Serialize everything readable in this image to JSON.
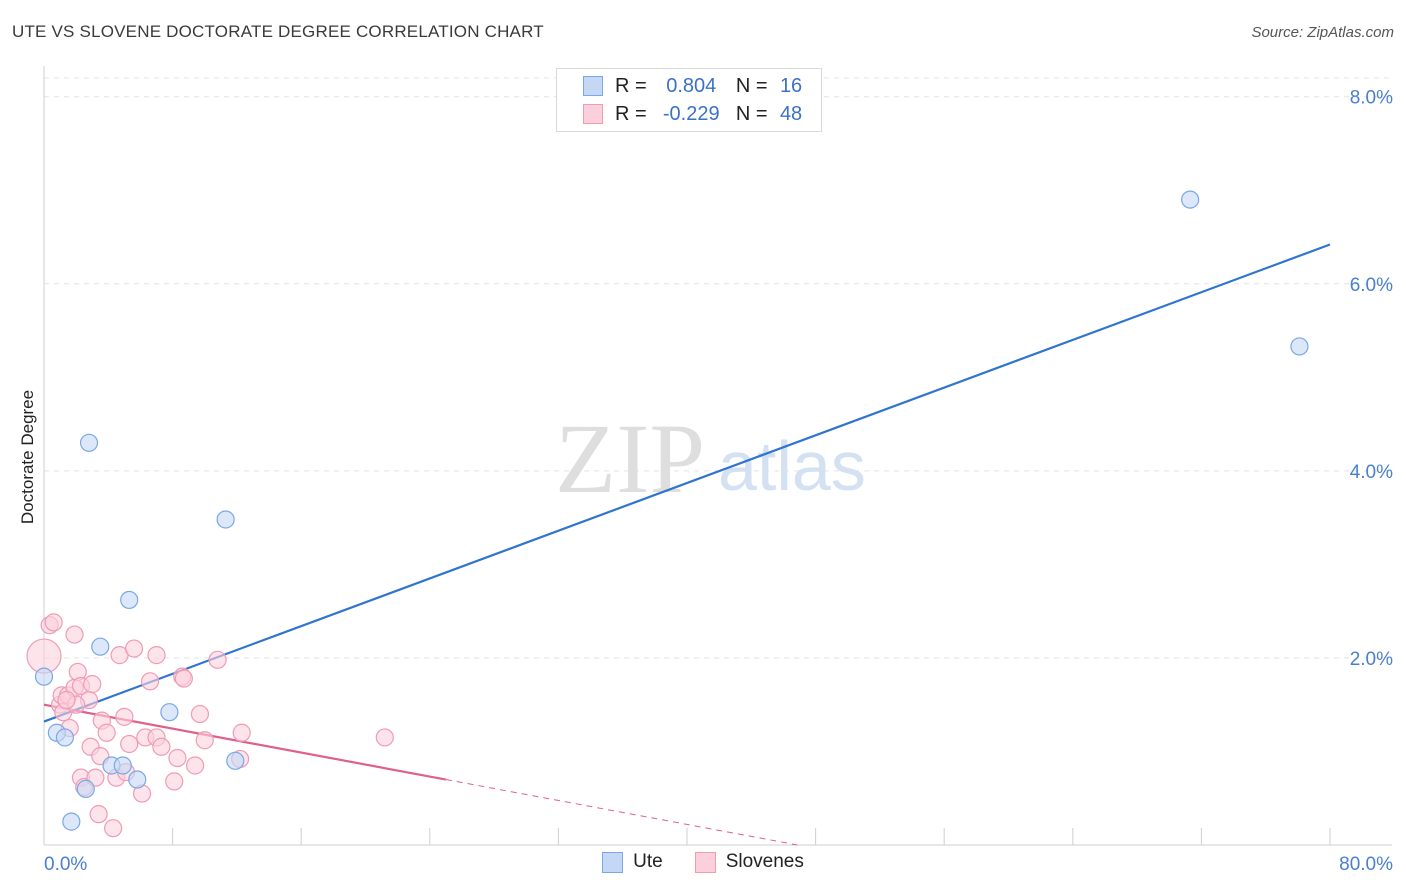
{
  "header": {
    "title": "UTE VS SLOVENE DOCTORATE DEGREE CORRELATION CHART",
    "source": "Source: ZipAtlas.com"
  },
  "watermark": {
    "zip": "ZIP",
    "atlas": "atlas"
  },
  "legend": {
    "rows": [
      {
        "r_label": "R =",
        "r_value": "0.804",
        "n_label": "N =",
        "n_value": "16",
        "color": "#7aa8e6",
        "fill": "#c4d8f5"
      },
      {
        "r_label": "R =",
        "r_value": "-0.229",
        "n_label": "N =",
        "n_value": "48",
        "color": "#f09bb4",
        "fill": "#fbd0dc"
      }
    ]
  },
  "bottom_legend": {
    "items": [
      "Ute",
      "Slovenes"
    ]
  },
  "chart_data": {
    "type": "scatter",
    "title": "UTE VS SLOVENE DOCTORATE DEGREE CORRELATION CHART",
    "xlabel": "",
    "ylabel": "Doctorate Degree",
    "xlim": [
      0,
      80
    ],
    "ylim": [
      0,
      8.2
    ],
    "x_tick_labels": [
      "0.0%",
      "80.0%"
    ],
    "y_ticks": [
      2,
      4,
      6,
      8
    ],
    "y_tick_labels": [
      "2.0%",
      "4.0%",
      "6.0%",
      "8.0%"
    ],
    "grid": true,
    "series": [
      {
        "name": "Ute",
        "color": "#7aa8e6",
        "fill": "#c4d8f5",
        "line_color": "#2f74d0",
        "r": 0.804,
        "n": 16,
        "trend": {
          "x": [
            0,
            80
          ],
          "y": [
            1.32,
            6.42
          ],
          "dashed_from": null
        },
        "points": [
          [
            0.0,
            1.8
          ],
          [
            0.8,
            1.2
          ],
          [
            1.3,
            1.15
          ],
          [
            1.7,
            0.25
          ],
          [
            2.6,
            0.6
          ],
          [
            2.8,
            4.3
          ],
          [
            3.5,
            2.12
          ],
          [
            4.2,
            0.85
          ],
          [
            4.9,
            0.85
          ],
          [
            5.3,
            2.62
          ],
          [
            5.8,
            0.7
          ],
          [
            7.8,
            1.42
          ],
          [
            11.3,
            3.48
          ],
          [
            11.9,
            0.9
          ],
          [
            71.3,
            6.9
          ],
          [
            78.1,
            5.33
          ]
        ]
      },
      {
        "name": "Slovenes",
        "color": "#f09bb4",
        "fill": "#fbd0dc",
        "line_color": "#e0608a",
        "r": -0.229,
        "n": 48,
        "trend": {
          "x": [
            0,
            50
          ],
          "y": [
            1.5,
            -0.1
          ],
          "dashed_from": 25
        },
        "points": [
          [
            0.0,
            2.02
          ],
          [
            0.35,
            2.35
          ],
          [
            0.6,
            2.38
          ],
          [
            1.0,
            1.5
          ],
          [
            1.1,
            1.6
          ],
          [
            1.2,
            1.42
          ],
          [
            1.5,
            1.6
          ],
          [
            1.6,
            1.25
          ],
          [
            1.9,
            1.68
          ],
          [
            1.9,
            2.25
          ],
          [
            2.1,
            1.85
          ],
          [
            2.3,
            1.7
          ],
          [
            2.3,
            0.72
          ],
          [
            2.5,
            0.62
          ],
          [
            2.8,
            1.55
          ],
          [
            2.9,
            1.05
          ],
          [
            3.0,
            1.72
          ],
          [
            3.2,
            0.72
          ],
          [
            3.4,
            0.33
          ],
          [
            3.5,
            0.95
          ],
          [
            3.6,
            1.33
          ],
          [
            3.9,
            1.2
          ],
          [
            4.3,
            0.18
          ],
          [
            4.5,
            0.72
          ],
          [
            4.7,
            2.03
          ],
          [
            5.0,
            1.37
          ],
          [
            5.1,
            0.78
          ],
          [
            5.3,
            1.08
          ],
          [
            5.6,
            2.1
          ],
          [
            6.1,
            0.55
          ],
          [
            6.3,
            1.15
          ],
          [
            6.6,
            1.75
          ],
          [
            7.0,
            2.03
          ],
          [
            7.0,
            1.15
          ],
          [
            7.3,
            1.05
          ],
          [
            8.1,
            0.68
          ],
          [
            8.3,
            0.93
          ],
          [
            8.6,
            1.8
          ],
          [
            8.7,
            1.78
          ],
          [
            9.4,
            0.85
          ],
          [
            9.7,
            1.4
          ],
          [
            10.0,
            1.12
          ],
          [
            10.8,
            1.98
          ],
          [
            12.2,
            0.92
          ],
          [
            12.3,
            1.2
          ],
          [
            21.2,
            1.15
          ],
          [
            2.0,
            1.5
          ],
          [
            1.4,
            1.55
          ]
        ]
      }
    ]
  }
}
